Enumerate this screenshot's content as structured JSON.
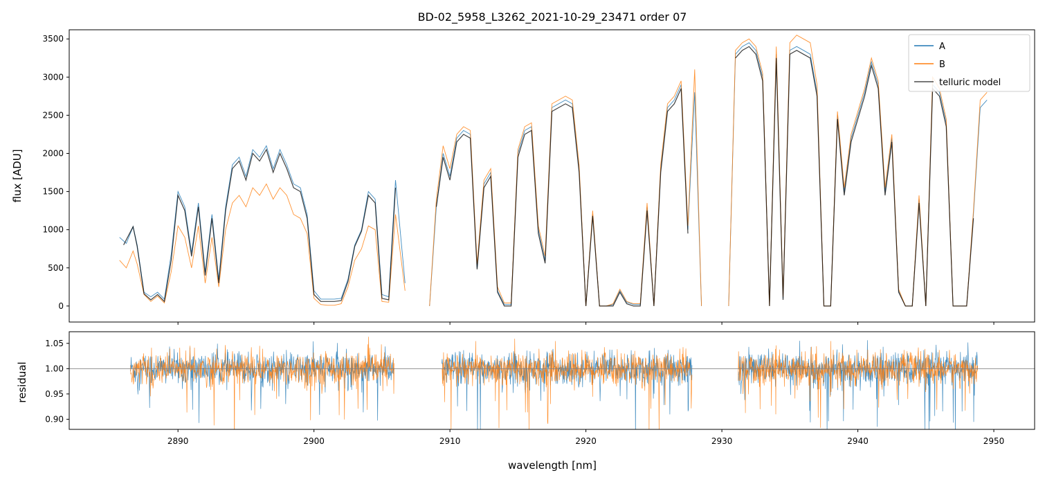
{
  "chart_data": {
    "type": "line",
    "title": "BD-02_5958_L3262_2021-10-29_23471  order 07",
    "xlabel": "wavelength [nm]",
    "xlim": [
      2882,
      2953
    ],
    "xticks": [
      2890,
      2900,
      2910,
      2920,
      2930,
      2940,
      2950
    ],
    "xtick_labels": [
      "2890",
      "2900",
      "2910",
      "2920",
      "2930",
      "2940",
      "2950"
    ],
    "colors": {
      "A": "#1f77b4",
      "B": "#ff7f0e",
      "model": "#000000",
      "refline": "#808080"
    },
    "panels": [
      {
        "name": "flux",
        "ylabel": "flux [ADU]",
        "ylim": [
          -210,
          3620
        ],
        "yticks": [
          0,
          500,
          1000,
          1500,
          2000,
          2500,
          3000,
          3500
        ],
        "ytick_labels": [
          "0",
          "500",
          "1000",
          "1500",
          "2000",
          "2500",
          "3000",
          "3500"
        ],
        "legend": {
          "position": "top-right",
          "entries": [
            "A",
            "B",
            "telluric model"
          ]
        },
        "segments": [
          {
            "name": "A",
            "x": [
              2885.7,
              2886.2,
              2886.7,
              2887.0,
              2887.5,
              2888.0,
              2888.5,
              2889.0,
              2889.5,
              2890.0,
              2890.5,
              2891.0,
              2891.5,
              2892.0,
              2892.5,
              2893.0,
              2893.5,
              2894.0,
              2894.5,
              2895.0,
              2895.5,
              2896.0,
              2896.5,
              2897.0,
              2897.5,
              2898.0,
              2898.5,
              2899.0,
              2899.5,
              2900.0,
              2900.5,
              2901.0,
              2901.5,
              2902.0,
              2902.5,
              2903.0,
              2903.5,
              2904.0,
              2904.5,
              2905.0,
              2905.5,
              2906.0,
              2906.7
            ],
            "y": [
              900,
              820,
              1040,
              800,
              180,
              120,
              180,
              90,
              680,
              1500,
              1300,
              700,
              1350,
              450,
              1200,
              350,
              1300,
              1850,
              1950,
              1700,
              2050,
              1950,
              2100,
              1800,
              2050,
              1850,
              1600,
              1550,
              1200,
              200,
              90,
              90,
              90,
              100,
              350,
              800,
              1000,
              1500,
              1400,
              150,
              120,
              1650,
              300
            ]
          },
          {
            "name": "B",
            "x": [
              2885.7,
              2886.2,
              2886.7,
              2887.0,
              2887.5,
              2888.0,
              2888.5,
              2889.0,
              2889.5,
              2890.0,
              2890.5,
              2891.0,
              2891.5,
              2892.0,
              2892.5,
              2893.0,
              2893.5,
              2894.0,
              2894.5,
              2895.0,
              2895.5,
              2896.0,
              2896.5,
              2897.0,
              2897.5,
              2898.0,
              2898.5,
              2899.0,
              2899.5,
              2900.0,
              2900.5,
              2901.0,
              2901.5,
              2902.0,
              2902.5,
              2903.0,
              2903.5,
              2904.0,
              2904.5,
              2905.0,
              2905.5,
              2906.0,
              2906.7
            ],
            "y": [
              600,
              500,
              720,
              550,
              150,
              60,
              130,
              40,
              450,
              1050,
              900,
              500,
              1050,
              300,
              900,
              250,
              1000,
              1350,
              1450,
              1300,
              1550,
              1450,
              1600,
              1400,
              1550,
              1450,
              1200,
              1150,
              950,
              100,
              20,
              10,
              10,
              30,
              250,
              600,
              750,
              1050,
              1000,
              60,
              50,
              1200,
              200
            ]
          },
          {
            "name": "model",
            "x": [
              2886.0,
              2886.7,
              2887.0,
              2887.5,
              2888.0,
              2888.5,
              2889.0,
              2889.5,
              2890.0,
              2890.5,
              2891.0,
              2891.5,
              2892.0,
              2892.5,
              2893.0,
              2893.5,
              2894.0,
              2894.5,
              2895.0,
              2895.5,
              2896.0,
              2896.5,
              2897.0,
              2897.5,
              2898.0,
              2898.5,
              2899.0,
              2899.5,
              2900.0,
              2900.5,
              2901.0,
              2901.5,
              2902.0,
              2902.5,
              2903.0,
              2903.5,
              2904.0,
              2904.5,
              2905.0,
              2905.5,
              2906.0
            ],
            "y": [
              800,
              1040,
              780,
              160,
              80,
              150,
              60,
              600,
              1450,
              1250,
              650,
              1300,
              400,
              1150,
              300,
              1250,
              1800,
              1900,
              1650,
              2000,
              1900,
              2050,
              1750,
              2000,
              1800,
              1550,
              1500,
              1150,
              150,
              60,
              60,
              60,
              70,
              320,
              780,
              980,
              1450,
              1350,
              100,
              80,
              1550
            ]
          },
          {
            "name": "A",
            "x": [
              2908.5,
              2909.0,
              2909.5,
              2910.0,
              2910.5,
              2911.0,
              2911.5,
              2912.0,
              2912.5,
              2913.0,
              2913.5,
              2914.0,
              2914.5,
              2915.0,
              2915.5,
              2916.0,
              2916.5,
              2917.0,
              2917.5,
              2918.0,
              2918.5,
              2919.0,
              2919.5,
              2920.0,
              2920.5,
              2921.0,
              2921.5,
              2922.0,
              2922.5,
              2923.0,
              2923.5,
              2924.0,
              2924.5,
              2925.0,
              2925.5,
              2926.0,
              2926.5,
              2927.0,
              2927.5,
              2928.0,
              2928.5
            ],
            "y": [
              0,
              1300,
              2000,
              1700,
              2200,
              2300,
              2250,
              500,
              1600,
              1750,
              200,
              20,
              20,
              2000,
              2300,
              2350,
              1000,
              600,
              2600,
              2650,
              2700,
              2650,
              1800,
              0,
              1200,
              0,
              0,
              20,
              200,
              50,
              20,
              20,
              1300,
              0,
              1800,
              2600,
              2700,
              2900,
              1000,
              2800,
              0
            ]
          },
          {
            "name": "B",
            "x": [
              2908.5,
              2909.0,
              2909.5,
              2910.0,
              2910.5,
              2911.0,
              2911.5,
              2912.0,
              2912.5,
              2913.0,
              2913.5,
              2914.0,
              2914.5,
              2915.0,
              2915.5,
              2916.0,
              2916.5,
              2917.0,
              2917.5,
              2918.0,
              2918.5,
              2919.0,
              2919.5,
              2920.0,
              2920.5,
              2921.0,
              2921.5,
              2922.0,
              2922.5,
              2923.0,
              2923.5,
              2924.0,
              2924.5,
              2925.0,
              2925.5,
              2926.0,
              2926.5,
              2927.0,
              2927.5,
              2928.0,
              2928.5
            ],
            "y": [
              0,
              1400,
              2100,
              1800,
              2250,
              2350,
              2300,
              550,
              1650,
              1800,
              250,
              40,
              40,
              2050,
              2350,
              2400,
              1050,
              650,
              2650,
              2700,
              2750,
              2700,
              1850,
              0,
              1250,
              0,
              0,
              30,
              220,
              60,
              30,
              30,
              1350,
              0,
              1850,
              2650,
              2750,
              2950,
              1050,
              3100,
              0
            ]
          },
          {
            "name": "model",
            "x": [
              2909.0,
              2909.5,
              2910.0,
              2910.5,
              2911.0,
              2911.5,
              2912.0,
              2912.5,
              2913.0,
              2913.5,
              2914.0,
              2914.5,
              2915.0,
              2915.5,
              2916.0,
              2916.5,
              2917.0,
              2917.5,
              2918.0,
              2918.5,
              2919.0,
              2919.5,
              2920.0,
              2920.5,
              2921.0,
              2921.5,
              2922.0,
              2922.5,
              2923.0,
              2923.5,
              2924.0,
              2924.5,
              2925.0,
              2925.5,
              2926.0,
              2926.5,
              2927.0,
              2927.5
            ],
            "y": [
              1300,
              1950,
              1650,
              2150,
              2250,
              2200,
              480,
              1550,
              1700,
              180,
              0,
              0,
              1950,
              2250,
              2300,
              950,
              560,
              2550,
              2600,
              2650,
              2600,
              1750,
              0,
              1180,
              0,
              0,
              0,
              180,
              30,
              0,
              0,
              1250,
              0,
              1750,
              2550,
              2650,
              2850,
              950
            ]
          },
          {
            "name": "A",
            "x": [
              2930.5,
              2931.0,
              2931.5,
              2932.0,
              2932.5,
              2933.0,
              2933.5,
              2934.0,
              2934.5,
              2935.0,
              2935.5,
              2936.0,
              2936.5,
              2937.0,
              2937.5,
              2938.0,
              2938.5,
              2939.0,
              2939.5,
              2940.0,
              2940.5,
              2941.0,
              2941.5,
              2942.0,
              2942.5,
              2943.0,
              2943.5,
              2944.0,
              2944.5,
              2945.0,
              2945.5,
              2946.0,
              2946.5,
              2947.0,
              2947.5,
              2948.0,
              2948.5,
              2949.0,
              2949.5
            ],
            "y": [
              0,
              3300,
              3400,
              3450,
              3350,
              3000,
              0,
              3300,
              100,
              3350,
              3400,
              3350,
              3300,
              2800,
              0,
              0,
              2500,
              1500,
              2200,
              2500,
              2800,
              3200,
              2900,
              1500,
              2200,
              200,
              0,
              0,
              1400,
              0,
              2900,
              2800,
              2400,
              0,
              0,
              0,
              1200,
              2600,
              2700
            ]
          },
          {
            "name": "B",
            "x": [
              2930.5,
              2931.0,
              2931.5,
              2932.0,
              2932.5,
              2933.0,
              2933.5,
              2934.0,
              2934.5,
              2935.0,
              2935.5,
              2936.0,
              2936.5,
              2937.0,
              2937.5,
              2938.0,
              2938.5,
              2939.0,
              2939.5,
              2940.0,
              2940.5,
              2941.0,
              2941.5,
              2942.0,
              2942.5,
              2943.0,
              2943.5,
              2944.0,
              2944.5,
              2945.0,
              2945.5,
              2946.0,
              2946.5,
              2947.0,
              2947.5,
              2948.0,
              2948.5,
              2949.0,
              2949.5
            ],
            "y": [
              0,
              3350,
              3450,
              3500,
              3400,
              3050,
              0,
              3400,
              120,
              3450,
              3550,
              3500,
              3450,
              2900,
              0,
              0,
              2550,
              1550,
              2250,
              2550,
              2850,
              3250,
              2950,
              1550,
              2250,
              220,
              0,
              0,
              1450,
              0,
              3000,
              2850,
              2450,
              0,
              0,
              0,
              1250,
              2700,
              2800
            ]
          },
          {
            "name": "model",
            "x": [
              2931.0,
              2931.5,
              2932.0,
              2932.5,
              2933.0,
              2933.5,
              2934.0,
              2934.5,
              2935.0,
              2935.5,
              2936.0,
              2936.5,
              2937.0,
              2937.5,
              2938.0,
              2938.5,
              2939.0,
              2939.5,
              2940.0,
              2940.5,
              2941.0,
              2941.5,
              2942.0,
              2942.5,
              2943.0,
              2943.5,
              2944.0,
              2944.5,
              2945.0,
              2945.5,
              2946.0,
              2946.5,
              2947.0,
              2947.5,
              2948.0,
              2948.5
            ],
            "y": [
              3250,
              3350,
              3400,
              3300,
              2950,
              0,
              3250,
              80,
              3300,
              3350,
              3300,
              3250,
              2750,
              0,
              0,
              2450,
              1450,
              2150,
              2450,
              2750,
              3150,
              2850,
              1450,
              2150,
              180,
              0,
              0,
              1350,
              0,
              2850,
              2750,
              2350,
              0,
              0,
              0,
              1150
            ]
          }
        ]
      },
      {
        "name": "residual",
        "ylabel": "residual",
        "ylim": [
          0.88,
          1.073
        ],
        "yticks": [
          0.9,
          0.95,
          1.0,
          1.05
        ],
        "ytick_labels": [
          "0.90",
          "0.95",
          "1.00",
          "1.05"
        ],
        "reference_line": 1.0,
        "residual_ranges": [
          [
            2886.5,
            2905.9
          ],
          [
            2909.4,
            2927.8
          ],
          [
            2931.2,
            2948.8
          ]
        ],
        "residual_spread": 0.03
      }
    ]
  }
}
